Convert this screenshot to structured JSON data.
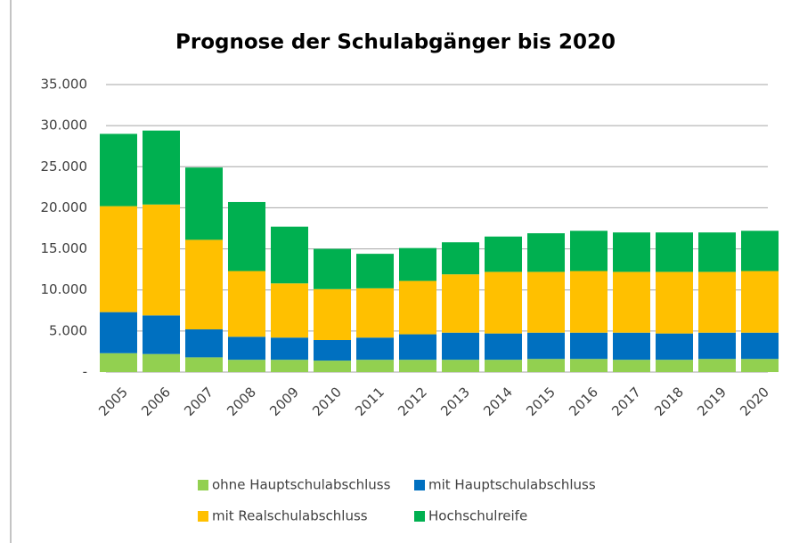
{
  "chart_data": {
    "type": "stacked_bar",
    "title": "Prognose der Schulabgänger bis 2020",
    "categories": [
      "2005",
      "2006",
      "2007",
      "2008",
      "2009",
      "2010",
      "2011",
      "2012",
      "2013",
      "2014",
      "2015",
      "2016",
      "2017",
      "2018",
      "2019",
      "2020"
    ],
    "series": [
      {
        "name": "ohne Hauptschulabschluss",
        "color": "#92d050",
        "values": [
          2300,
          2200,
          1800,
          1500,
          1500,
          1400,
          1500,
          1500,
          1500,
          1500,
          1600,
          1600,
          1500,
          1500,
          1600,
          1600
        ]
      },
      {
        "name": "mit Hauptschulabschluss",
        "color": "#0070c0",
        "values": [
          5000,
          4700,
          3400,
          2800,
          2700,
          2500,
          2700,
          3100,
          3300,
          3200,
          3200,
          3200,
          3300,
          3200,
          3200,
          3200
        ]
      },
      {
        "name": "mit Realschulabschluss",
        "color": "#ffc000",
        "values": [
          12900,
          13500,
          10900,
          8000,
          6600,
          6200,
          6000,
          6500,
          7100,
          7500,
          7400,
          7500,
          7400,
          7500,
          7400,
          7500
        ]
      },
      {
        "name": "Hochschulreife",
        "color": "#00b050",
        "values": [
          8800,
          9000,
          8800,
          8400,
          6900,
          4900,
          4200,
          4000,
          3900,
          4300,
          4700,
          4900,
          4800,
          4800,
          4800,
          4900
        ]
      }
    ],
    "ylim": [
      0,
      35000
    ],
    "yticks": [
      {
        "value": 0,
        "label": "-"
      },
      {
        "value": 5000,
        "label": "5.000"
      },
      {
        "value": 10000,
        "label": "10.000"
      },
      {
        "value": 15000,
        "label": "15.000"
      },
      {
        "value": 20000,
        "label": "20.000"
      },
      {
        "value": 25000,
        "label": "25.000"
      },
      {
        "value": 30000,
        "label": "30.000"
      },
      {
        "value": 35000,
        "label": "35.000"
      }
    ],
    "grid": true,
    "legend": "bottom"
  }
}
